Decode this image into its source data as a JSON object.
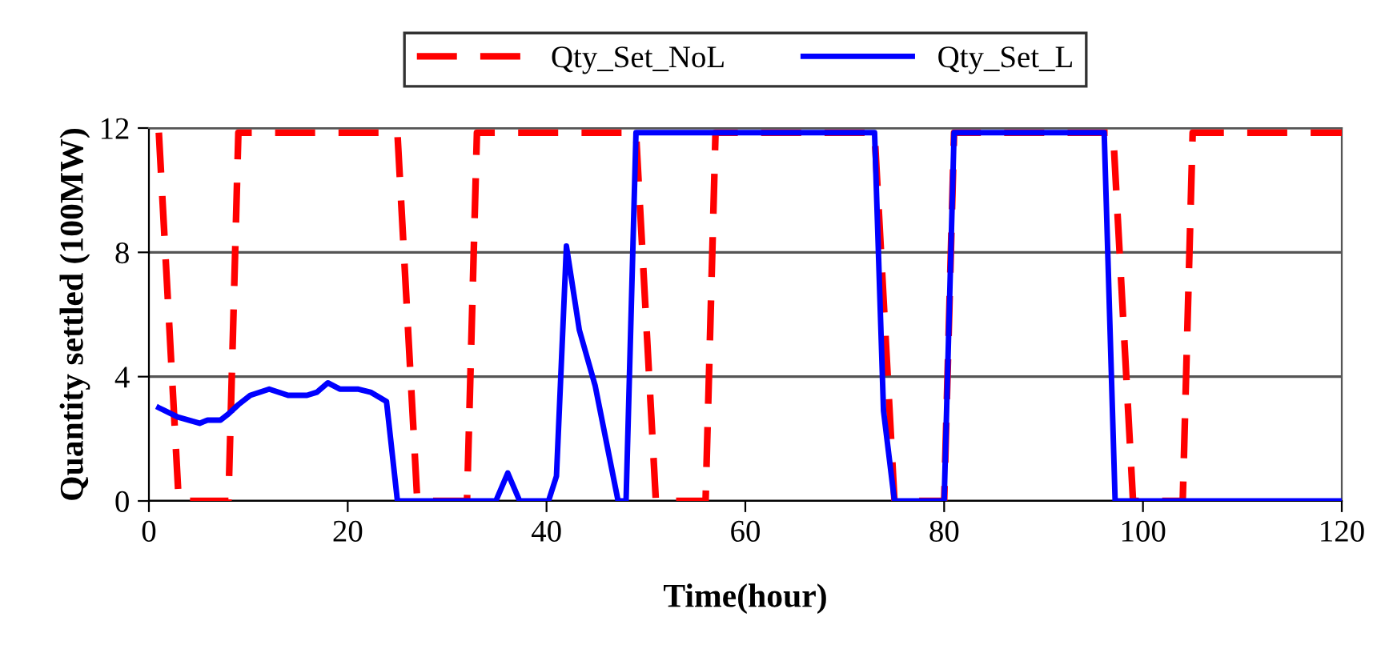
{
  "chart_data": {
    "type": "line",
    "xlabel": "Time(hour)",
    "ylabel": "Quantity settled (100MW)",
    "xlim": [
      0,
      120
    ],
    "xticks": [
      0,
      20,
      40,
      60,
      80,
      100,
      120
    ],
    "ylim": [
      0,
      12
    ],
    "yticks": [
      0,
      4,
      8,
      12
    ],
    "grid": "y",
    "legend": "top",
    "marker": "none",
    "series": [
      {
        "name": "Qty_Set_NoL",
        "color": "#ff0000",
        "line_style": "dashed",
        "x": [
          1,
          3,
          8,
          9,
          25,
          27,
          32,
          33,
          49,
          51,
          56,
          57,
          73,
          75,
          80,
          81,
          97,
          99,
          104,
          105,
          120
        ],
        "values": [
          11.85,
          0,
          0,
          11.85,
          11.85,
          0,
          0,
          11.85,
          11.85,
          0,
          0,
          11.85,
          11.85,
          0,
          0,
          11.85,
          11.85,
          0,
          0,
          11.85,
          11.85
        ]
      },
      {
        "name": "Qty_Set_L",
        "color": "#0000ff",
        "line_style": "solid",
        "x": [
          1,
          2.9,
          5.1,
          5.9,
          7.2,
          8,
          9,
          10.2,
          12.1,
          14,
          15.9,
          16.9,
          18,
          19.2,
          21,
          22.3,
          23.9,
          25,
          34.9,
          36.1,
          37.3,
          40.2,
          41,
          42,
          43.3,
          44.9,
          47.2,
          48,
          49,
          73,
          73.9,
          75,
          80,
          81,
          96.1,
          97.2,
          120
        ],
        "values": [
          3.0,
          2.7,
          2.5,
          2.6,
          2.6,
          2.8,
          3.1,
          3.4,
          3.6,
          3.4,
          3.4,
          3.5,
          3.8,
          3.6,
          3.6,
          3.5,
          3.2,
          0,
          0,
          0.9,
          0,
          0,
          0.8,
          8.2,
          5.5,
          3.7,
          0,
          0,
          11.85,
          11.85,
          2.9,
          0,
          0,
          11.85,
          11.85,
          0,
          0
        ]
      }
    ]
  }
}
